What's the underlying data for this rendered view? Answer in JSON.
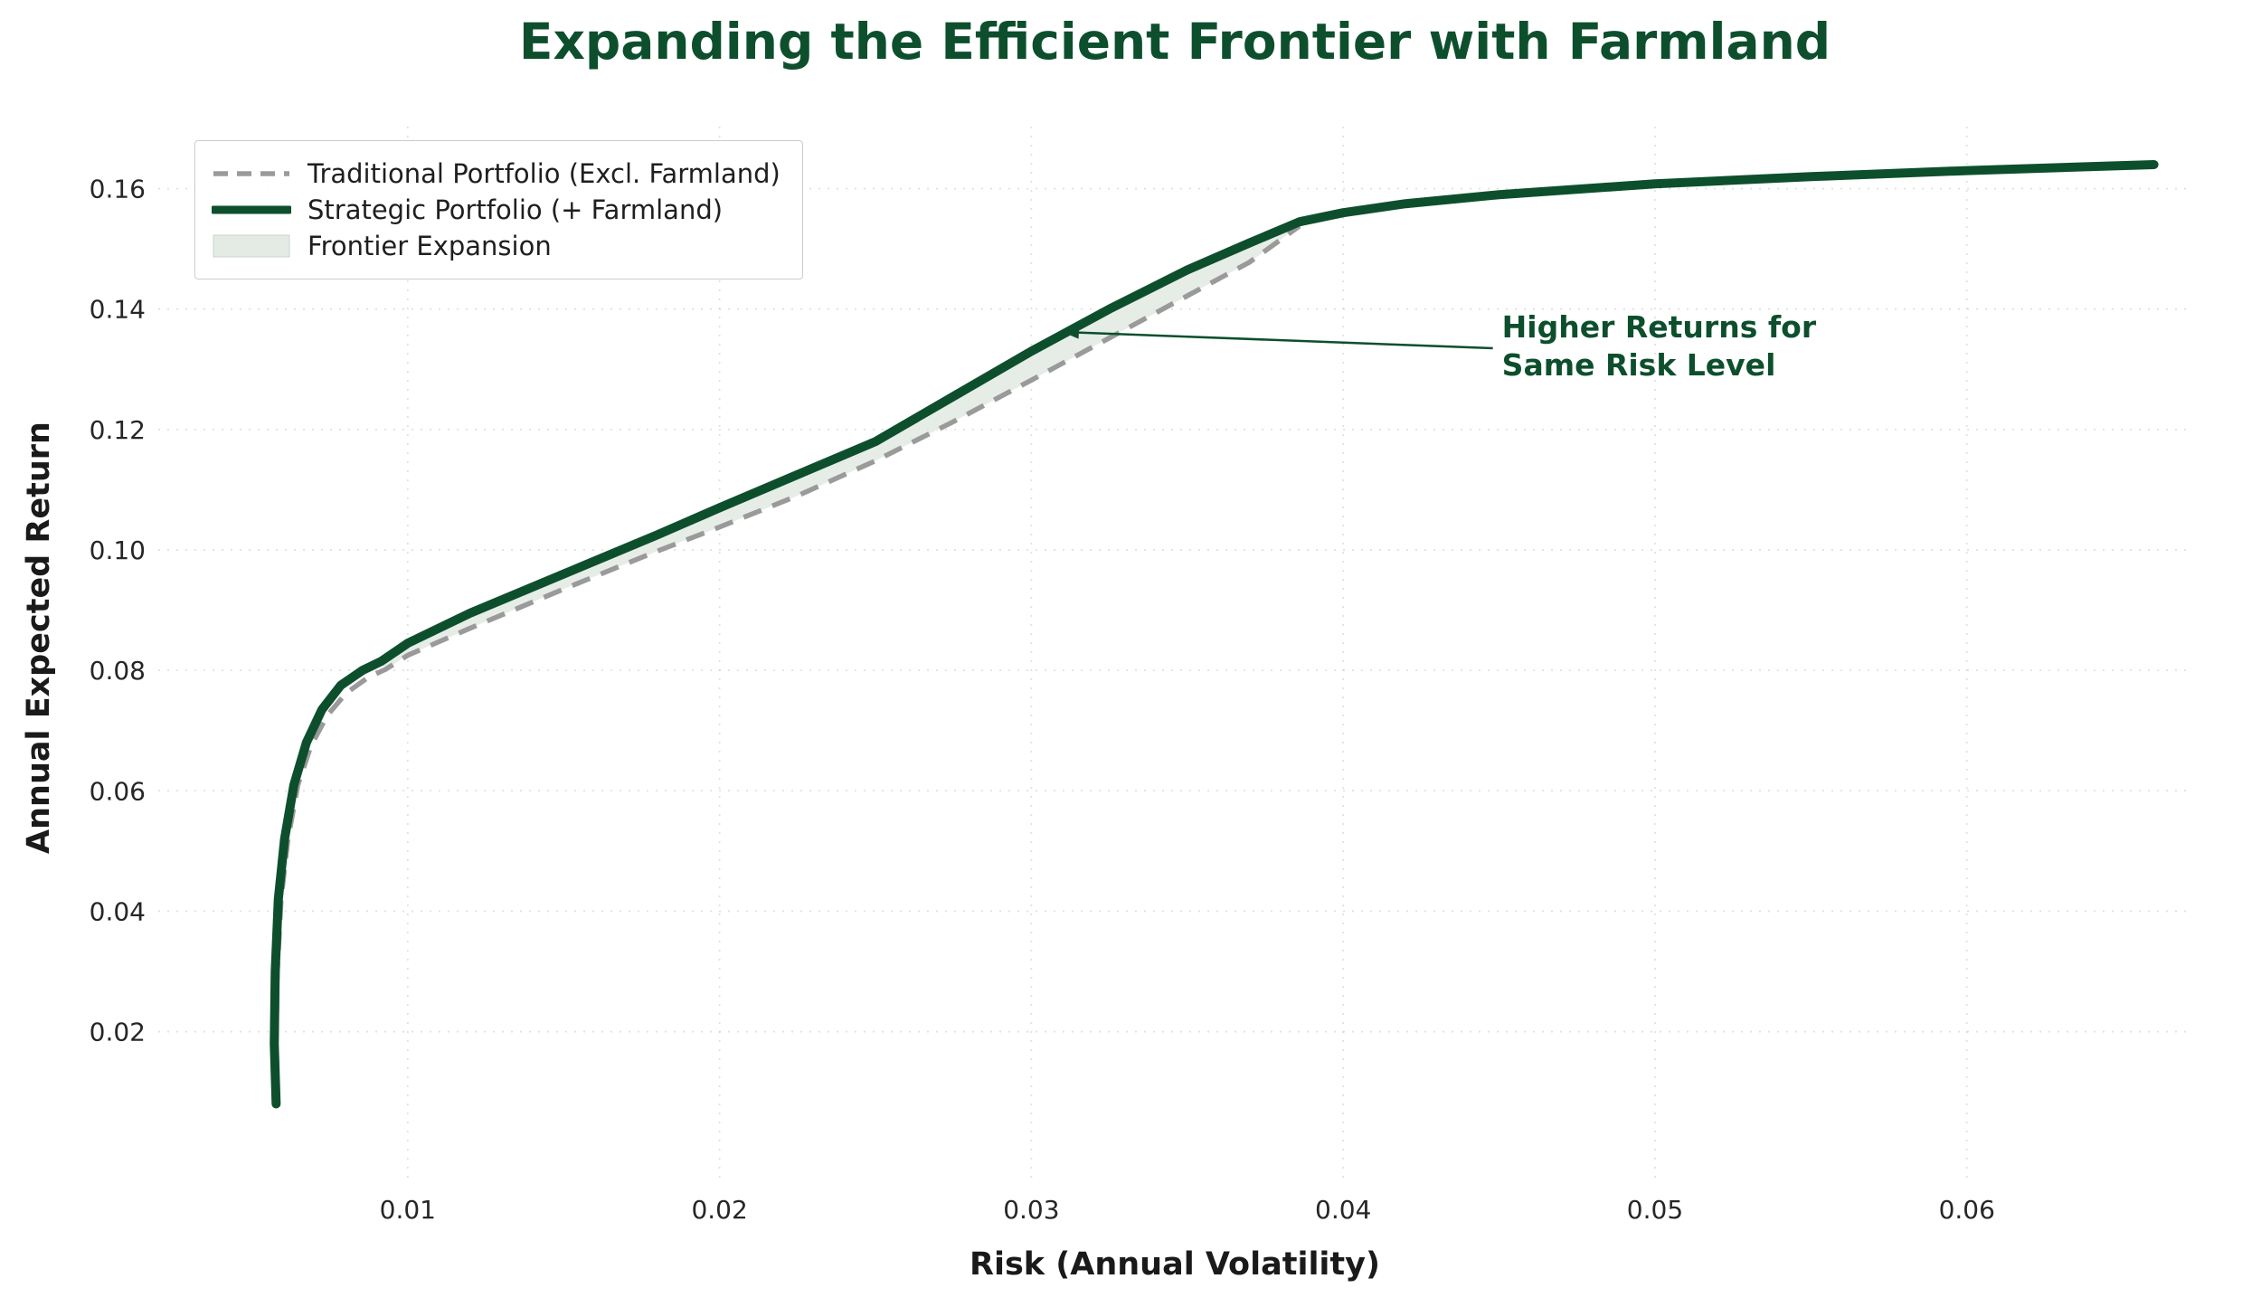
{
  "title": "Expanding the Efficient Frontier with Farmland",
  "colors": {
    "title_green": "#0d4f2d",
    "strategic_line": "#0d4f2d",
    "traditional_line": "#9a9a9a",
    "expansion_fill": "#e3ebe4",
    "annotation": "#0d4f2d",
    "grid": "#c9c9c9",
    "tick_text": "#262626",
    "axis_label": "#1a1a1a"
  },
  "chart_data": {
    "type": "line",
    "title": "Expanding the Efficient Frontier with Farmland",
    "xlabel": "Risk (Annual Volatility)",
    "ylabel": "Annual Expected Return",
    "xlim": [
      0.002,
      0.0672
    ],
    "ylim": [
      -0.005,
      0.1703
    ],
    "grid": "dotted",
    "legend_position": "upper left",
    "xticks": {
      "values": [
        0.01,
        0.02,
        0.03,
        0.04,
        0.05,
        0.06
      ],
      "labels": [
        "0.01",
        "0.02",
        "0.03",
        "0.04",
        "0.05",
        "0.06"
      ]
    },
    "yticks": {
      "values": [
        0.02,
        0.04,
        0.06,
        0.08,
        0.1,
        0.12,
        0.14,
        0.16
      ],
      "labels": [
        "0.02",
        "0.04",
        "0.06",
        "0.08",
        "0.10",
        "0.12",
        "0.14",
        "0.16"
      ]
    },
    "series": [
      {
        "name": "Traditional Portfolio (Excl. Farmland)",
        "style": "dashed",
        "color": "#9a9a9a",
        "x": [
          0.00584,
          0.00578,
          0.00582,
          0.00594,
          0.00616,
          0.00648,
          0.0069,
          0.00742,
          0.00802,
          0.00872,
          0.0093,
          0.01,
          0.012,
          0.015,
          0.018,
          0.02,
          0.0225,
          0.025,
          0.0275,
          0.03,
          0.0325,
          0.035,
          0.037,
          0.0386
        ],
        "y": [
          0.008,
          0.018,
          0.03,
          0.042,
          0.052,
          0.061,
          0.0675,
          0.0725,
          0.0762,
          0.0788,
          0.0802,
          0.0825,
          0.087,
          0.0935,
          0.0998,
          0.1038,
          0.109,
          0.1148,
          0.1213,
          0.1282,
          0.1352,
          0.1422,
          0.1478,
          0.1538
        ]
      },
      {
        "name": "Strategic Portfolio (+ Farmland)",
        "style": "solid",
        "color": "#0d4f2d",
        "x": [
          0.00578,
          0.00572,
          0.00575,
          0.00585,
          0.00605,
          0.00635,
          0.00675,
          0.00725,
          0.00785,
          0.00855,
          0.00915,
          0.01,
          0.012,
          0.015,
          0.018,
          0.02,
          0.0225,
          0.025,
          0.0275,
          0.03,
          0.0325,
          0.035,
          0.037,
          0.0386,
          0.04,
          0.042,
          0.045,
          0.05,
          0.055,
          0.06,
          0.066
        ],
        "y": [
          0.008,
          0.018,
          0.03,
          0.042,
          0.052,
          0.061,
          0.068,
          0.0735,
          0.0775,
          0.08,
          0.0815,
          0.0845,
          0.0895,
          0.096,
          0.1025,
          0.107,
          0.1125,
          0.118,
          0.1255,
          0.133,
          0.14,
          0.1465,
          0.151,
          0.1545,
          0.156,
          0.1575,
          0.159,
          0.1608,
          0.162,
          0.163,
          0.164
        ]
      }
    ],
    "fill_between": {
      "name": "Frontier Expansion",
      "color": "#e3ebe4",
      "x_range": [
        0.0091,
        0.0387
      ]
    },
    "annotation": {
      "line1": "Higher Returns for",
      "line2": "Same Risk Level",
      "xy": [
        0.031,
        0.1362
      ],
      "xytext": [
        0.0448,
        0.1335
      ],
      "color": "#0d4f2d"
    }
  }
}
